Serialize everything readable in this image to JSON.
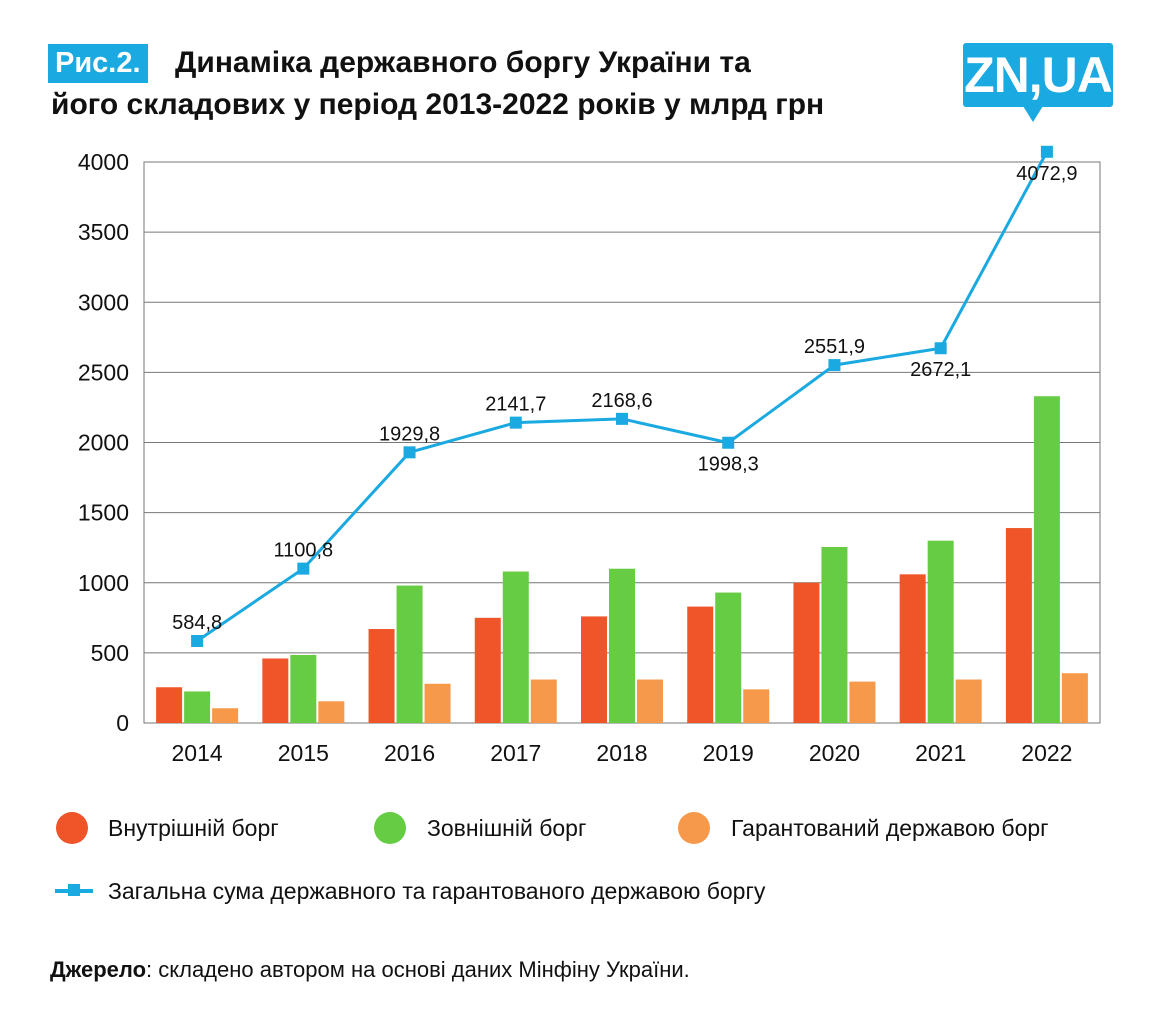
{
  "header": {
    "fig_label": "Рис.2.",
    "title_line1": "Динаміка державного боргу України та",
    "title_line2": "його складових у період 2013-2022 років у млрд грн",
    "logo_text": "ZN,UA"
  },
  "chart_data": {
    "type": "bar",
    "categories": [
      "2014",
      "2015",
      "2016",
      "2017",
      "2018",
      "2019",
      "2020",
      "2021",
      "2022"
    ],
    "ylim": [
      0,
      4000
    ],
    "yticks": [
      0,
      500,
      1000,
      1500,
      2000,
      2500,
      3000,
      3500,
      4000
    ],
    "grid": true,
    "series": [
      {
        "name": "Внутрішній борг",
        "type": "bar",
        "color": "#f0552a",
        "values": [
          255,
          460,
          670,
          750,
          760,
          830,
          1000,
          1060,
          1390
        ]
      },
      {
        "name": "Зовнішній борг",
        "type": "bar",
        "color": "#66cc44",
        "values": [
          225,
          485,
          980,
          1080,
          1100,
          930,
          1255,
          1300,
          2330
        ]
      },
      {
        "name": "Гарантований державою борг",
        "type": "bar",
        "color": "#f7994a",
        "values": [
          105,
          155,
          280,
          310,
          310,
          240,
          295,
          310,
          355
        ]
      },
      {
        "name": "Загальна сума державного та гарантованого державою боргу",
        "type": "line",
        "color": "#1aa9e0",
        "values": [
          584.8,
          1100.8,
          1929.8,
          2141.7,
          2168.6,
          1998.3,
          2551.9,
          2672.1,
          4072.9
        ],
        "labels": [
          "584,8",
          "1100,8",
          "1929,8",
          "2141,7",
          "2168,6",
          "1998,3",
          "2551,9",
          "2672,1",
          "4072,9"
        ]
      }
    ],
    "legend_position": "bottom"
  },
  "source": {
    "label": "Джерело",
    "text": ": складено автором на основі даних Мінфіну України."
  }
}
